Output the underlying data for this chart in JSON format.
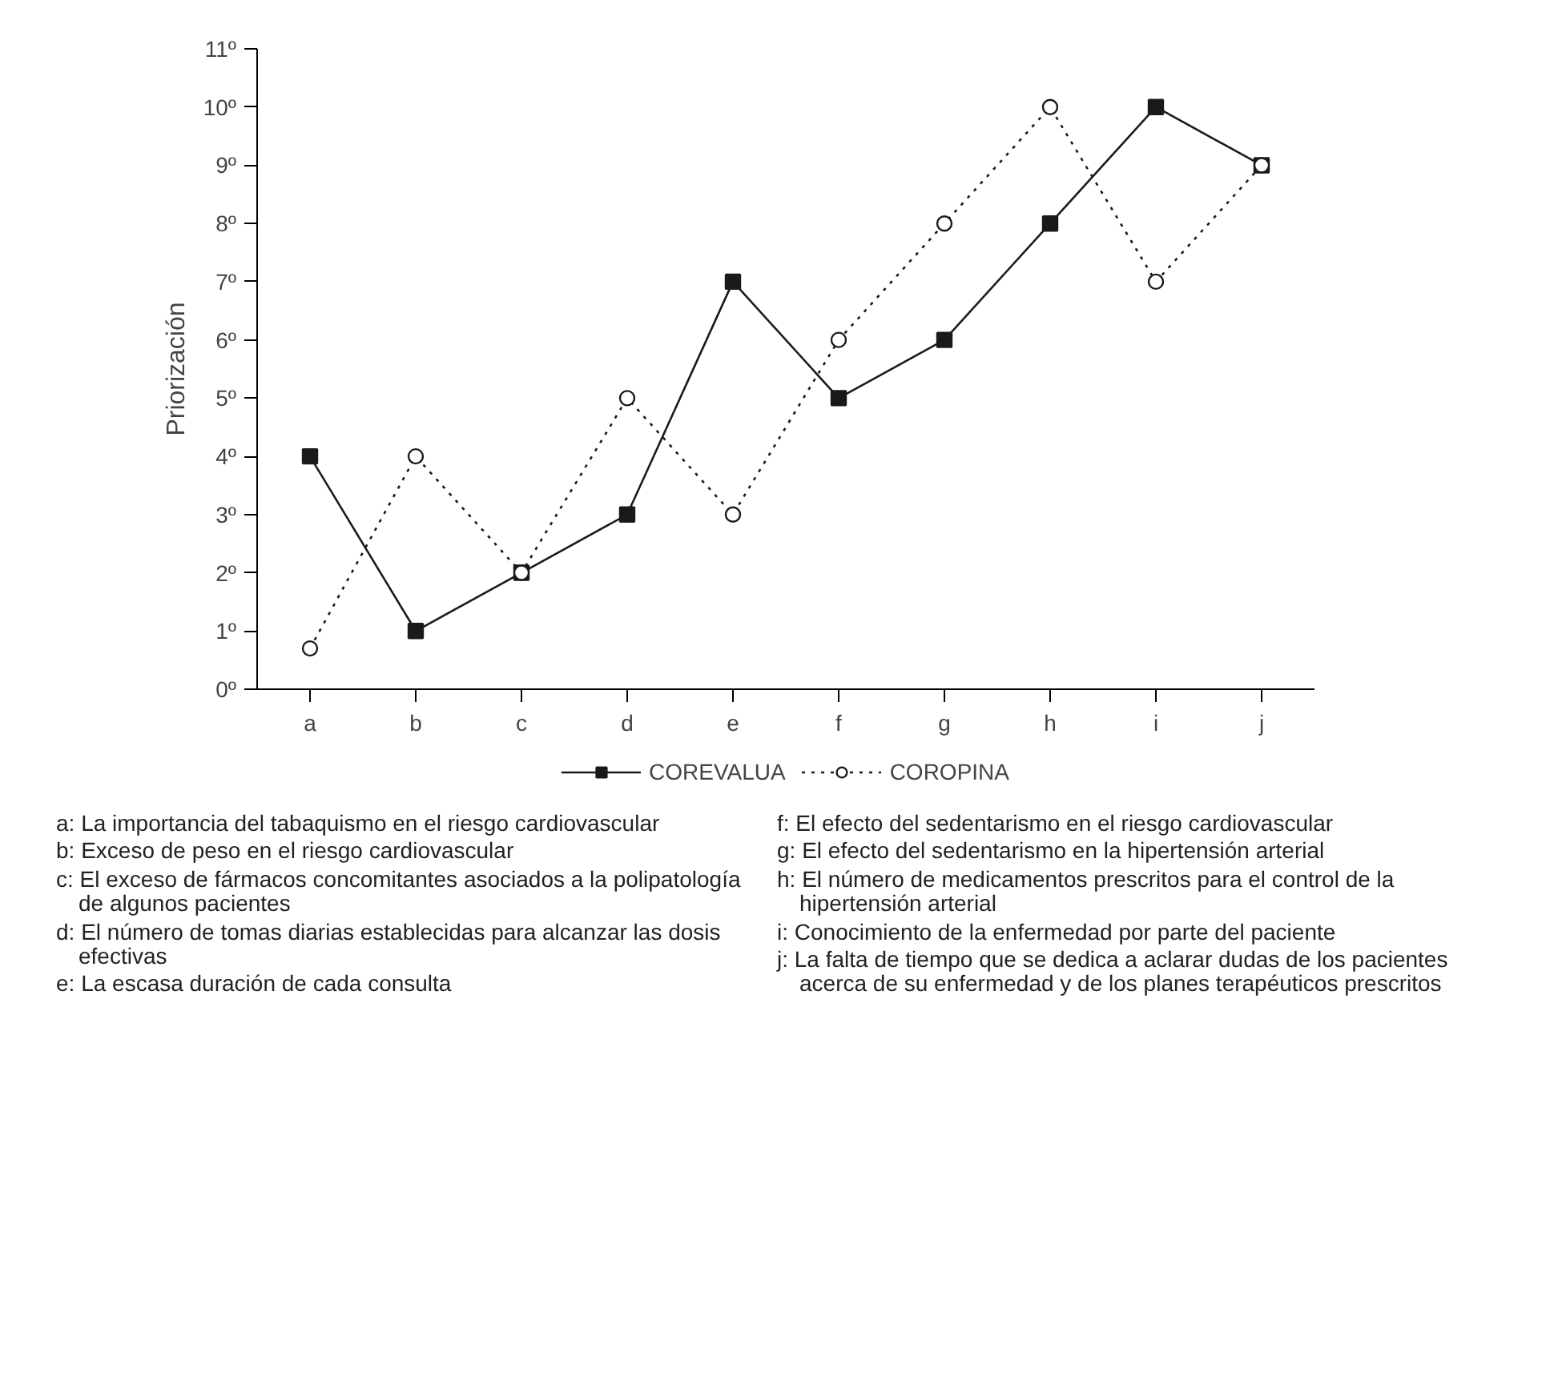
{
  "chart_data": {
    "type": "line",
    "ylabel": "Priorización",
    "categories": [
      "a",
      "b",
      "c",
      "d",
      "e",
      "f",
      "g",
      "h",
      "i",
      "j"
    ],
    "series": [
      {
        "name": "COREVALUA",
        "color": "#1a1a1a",
        "values": [
          4,
          1,
          2,
          3,
          7,
          5,
          6,
          8,
          10,
          9
        ],
        "marker": "square",
        "line_style": "solid"
      },
      {
        "name": "COROPINA",
        "color": "#1a1a1a",
        "values": [
          0.7,
          4,
          2,
          5,
          3,
          6,
          8,
          10,
          7,
          9
        ],
        "marker": "circle",
        "line_style": "dotted"
      }
    ],
    "ylim": [
      0,
      11
    ],
    "yticks": [
      {
        "value": 0,
        "label": "0º"
      },
      {
        "value": 1,
        "label": "1º"
      },
      {
        "value": 2,
        "label": "2º"
      },
      {
        "value": 3,
        "label": "3º"
      },
      {
        "value": 4,
        "label": "4º"
      },
      {
        "value": 5,
        "label": "5º"
      },
      {
        "value": 6,
        "label": "6º"
      },
      {
        "value": 7,
        "label": "7º"
      },
      {
        "value": 8,
        "label": "8º"
      },
      {
        "value": 9,
        "label": "9º"
      },
      {
        "value": 10,
        "label": "10º"
      },
      {
        "value": 11,
        "label": "11º"
      }
    ],
    "grid": false,
    "legend": "bottom",
    "annotations": [
      "a: La importancia del tabaquismo en el riesgo cardiovascular",
      "b: Exceso de peso en el riesgo cardiovascular",
      "c: El exceso de fármacos concomitantes asociados a la polipatología de algunos pacientes",
      "d: El número de tomas diarias establecidas para alcanzar las dosis efectivas",
      "e: La escasa duración de cada consulta",
      "f: El efecto del sedentarismo en el riesgo cardiovascular",
      "g: El efecto del sedentarismo en la hipertensión arterial",
      "h: El número de medicamentos prescritos para el control de la hipertensión arterial",
      "i: Conocimiento de la enfermedad por parte del paciente",
      "j: La falta de tiempo que se dedica a aclarar dudas de los pacientes acerca de su enfermedad y de los planes terapéuticos prescritos"
    ]
  }
}
